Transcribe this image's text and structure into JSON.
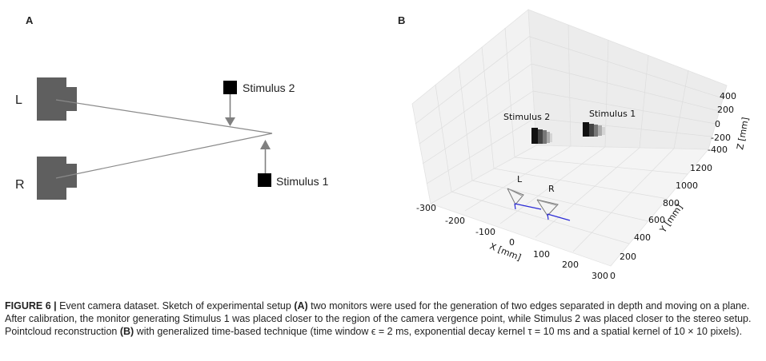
{
  "panel_a": {
    "letter": "A",
    "camera_left_label": "L",
    "camera_right_label": "R",
    "stimulus2_label": "Stimulus 2",
    "stimulus1_label": "Stimulus 1"
  },
  "panel_b": {
    "letter": "B",
    "stimulus2_label": "Stimulus 2",
    "stimulus1_label": "Stimulus 1",
    "camera_left_label": "L",
    "camera_right_label": "R",
    "x_axis_title": "X [mm]",
    "y_axis_title": "Y [mm]",
    "z_axis_title": "Z [mm]",
    "x_ticks": [
      "-300",
      "-200",
      "-100",
      "0",
      "100",
      "200",
      "300"
    ],
    "y_ticks": [
      "0",
      "200",
      "400",
      "600",
      "800",
      "1000",
      "1200"
    ],
    "z_ticks": [
      "400",
      "200",
      "0",
      "-200",
      "-400"
    ]
  },
  "caption": {
    "label": "FIGURE 6 |",
    "line1_a": " Event camera dataset. Sketch of experimental setup ",
    "ref_a": "(A)",
    "line1_b": " two monitors were used for the generation of two edges separated in depth and moving on a plane. After calibration, the monitor generating Stimulus 1 was placed closer to the region of the camera vergence point, while Stimulus 2 was placed closer to the stereo setup. Pointcloud reconstruction ",
    "ref_b": "(B)",
    "line2": " with generalized time-based technique (time window ϵ = 2 ms, exponential decay kernel τ = 10 ms and a spatial kernel of 10 × 10 pixels)."
  }
}
